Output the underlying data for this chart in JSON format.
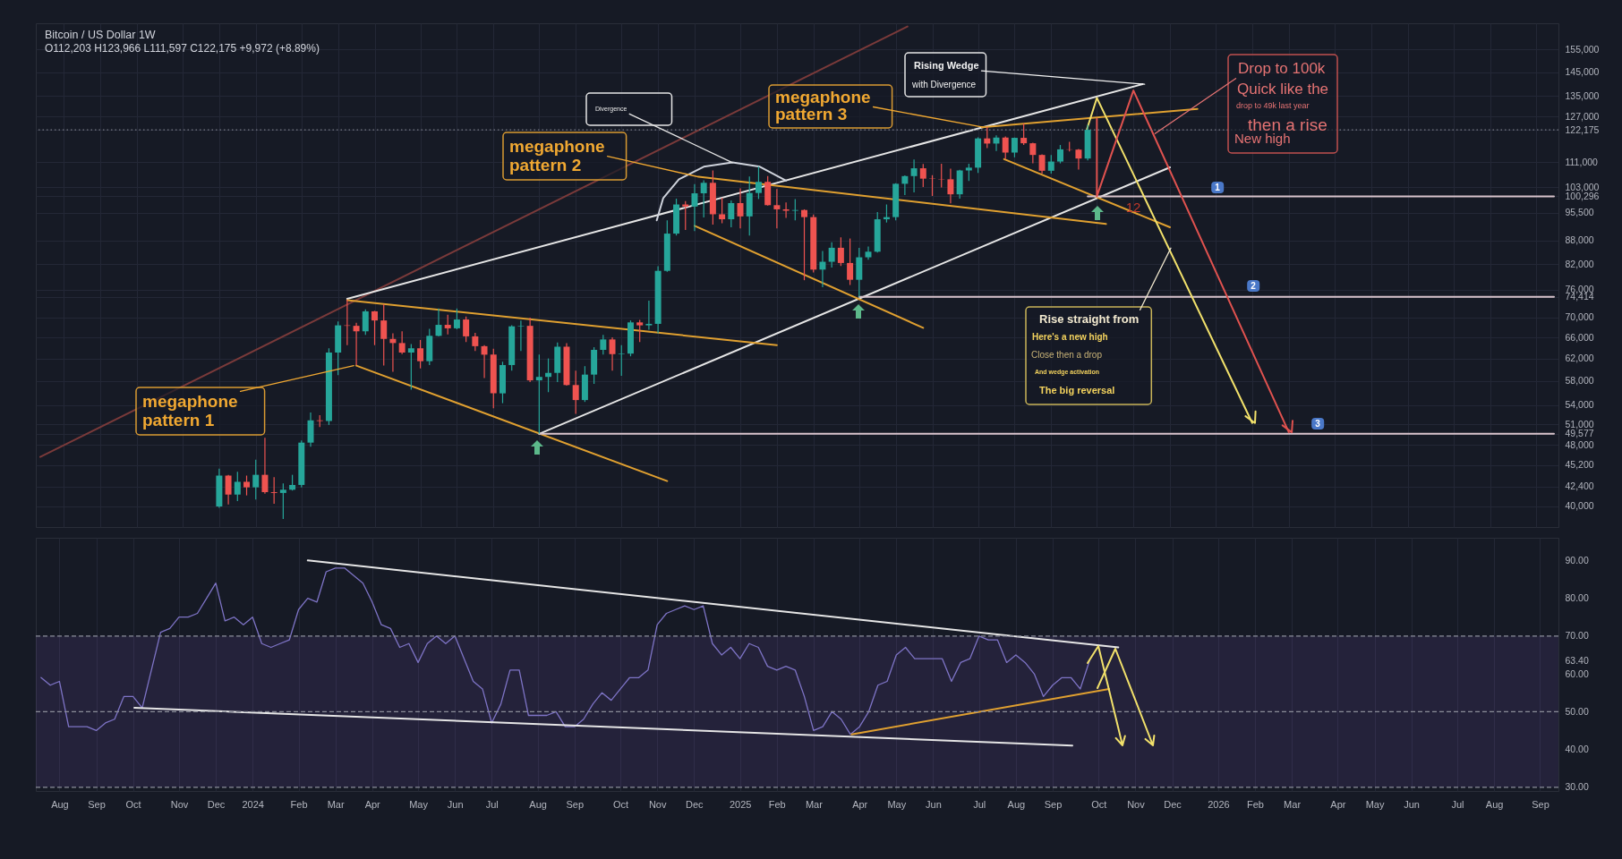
{
  "chart_data": [
    {
      "type": "candlestick",
      "title": "Bitcoin / US Dollar 1W",
      "subtitle": "O112,203 H123,966 L111,597 C122,175 +9,972 (+8.89%)",
      "x": [
        "2023-12-04",
        "2023-12-11",
        "2023-12-18",
        "2023-12-25",
        "2024-01-01",
        "2024-01-08",
        "2024-01-15",
        "2024-01-22",
        "2024-01-29",
        "2024-02-05",
        "2024-02-12",
        "2024-02-19",
        "2024-02-26",
        "2024-03-04",
        "2024-03-11",
        "2024-03-18",
        "2024-03-25",
        "2024-04-01",
        "2024-04-08",
        "2024-04-15",
        "2024-04-22",
        "2024-04-29",
        "2024-05-06",
        "2024-05-13",
        "2024-05-20",
        "2024-05-27",
        "2024-06-03",
        "2024-06-10",
        "2024-06-17",
        "2024-06-24",
        "2024-07-01",
        "2024-07-08",
        "2024-07-15",
        "2024-07-22",
        "2024-07-29",
        "2024-08-05",
        "2024-08-12",
        "2024-08-19",
        "2024-08-26",
        "2024-09-02",
        "2024-09-09",
        "2024-09-16",
        "2024-09-23",
        "2024-09-30",
        "2024-10-07",
        "2024-10-14",
        "2024-10-21",
        "2024-10-28",
        "2024-11-04",
        "2024-11-11",
        "2024-11-18",
        "2024-11-25",
        "2024-12-02",
        "2024-12-09",
        "2024-12-16",
        "2024-12-23",
        "2024-12-30",
        "2025-01-06",
        "2025-01-13",
        "2025-01-20",
        "2025-01-27",
        "2025-02-03",
        "2025-02-10",
        "2025-02-17",
        "2025-02-24",
        "2025-03-03",
        "2025-03-10",
        "2025-03-17",
        "2025-03-24",
        "2025-03-31",
        "2025-04-07",
        "2025-04-14",
        "2025-04-21",
        "2025-04-28",
        "2025-05-05",
        "2025-05-12",
        "2025-05-19",
        "2025-05-26",
        "2025-06-02",
        "2025-06-09",
        "2025-06-16",
        "2025-06-23",
        "2025-06-30",
        "2025-07-07",
        "2025-07-14",
        "2025-07-21",
        "2025-07-28",
        "2025-08-04",
        "2025-08-11",
        "2025-08-18",
        "2025-08-25",
        "2025-09-01",
        "2025-09-08",
        "2025-09-15",
        "2025-09-22",
        "2025-09-29"
      ],
      "ohlc": [
        [
          39970,
          44700,
          39800,
          43800
        ],
        [
          43800,
          43900,
          40200,
          41400
        ],
        [
          41400,
          44300,
          40600,
          43000
        ],
        [
          43000,
          43800,
          41300,
          42300
        ],
        [
          42300,
          45900,
          40800,
          43900
        ],
        [
          43900,
          49000,
          41500,
          41700
        ],
        [
          41700,
          43600,
          40300,
          41600
        ],
        [
          41600,
          42800,
          38500,
          42000
        ],
        [
          42000,
          43900,
          41900,
          42600
        ],
        [
          42600,
          48600,
          42300,
          48300
        ],
        [
          48300,
          52800,
          47700,
          51600
        ],
        [
          51600,
          52400,
          50600,
          51500
        ],
        [
          51500,
          63900,
          50900,
          63100
        ],
        [
          63100,
          69200,
          59000,
          68400
        ],
        [
          68400,
          73800,
          64500,
          68300
        ],
        [
          68300,
          68900,
          60800,
          67200
        ],
        [
          67200,
          71700,
          66500,
          71300
        ],
        [
          71300,
          71400,
          64500,
          69400
        ],
        [
          69400,
          72800,
          60700,
          65700
        ],
        [
          65700,
          66800,
          59600,
          64900
        ],
        [
          64900,
          67200,
          62800,
          63100
        ],
        [
          63100,
          64700,
          56500,
          63900
        ],
        [
          63900,
          65500,
          60200,
          61500
        ],
        [
          61500,
          67700,
          60800,
          66300
        ],
        [
          66300,
          71900,
          66200,
          68500
        ],
        [
          68500,
          70600,
          66600,
          67800
        ],
        [
          67800,
          71900,
          67600,
          69600
        ],
        [
          69600,
          70200,
          65100,
          66200
        ],
        [
          66200,
          66900,
          63400,
          64300
        ],
        [
          64300,
          64500,
          58500,
          62700
        ],
        [
          62700,
          63800,
          53500,
          55900
        ],
        [
          55900,
          61400,
          54300,
          60800
        ],
        [
          60800,
          68400,
          59800,
          68200
        ],
        [
          68200,
          69400,
          63400,
          68300
        ],
        [
          68300,
          70000,
          57800,
          58100
        ],
        [
          58100,
          62700,
          49577,
          58700
        ],
        [
          58700,
          62000,
          56100,
          59400
        ],
        [
          59400,
          65000,
          57800,
          64200
        ],
        [
          64200,
          64900,
          57200,
          57300
        ],
        [
          57300,
          59800,
          52600,
          54800
        ],
        [
          54800,
          60600,
          54500,
          59100
        ],
        [
          59100,
          64100,
          57500,
          63600
        ],
        [
          63600,
          66500,
          62700,
          65600
        ],
        [
          65600,
          66000,
          59800,
          62800
        ],
        [
          62800,
          64500,
          58900,
          62900
        ],
        [
          62900,
          69400,
          62400,
          69000
        ],
        [
          69000,
          69500,
          65100,
          68400
        ],
        [
          68400,
          73600,
          67500,
          68700
        ],
        [
          68700,
          81500,
          66800,
          80400
        ],
        [
          80400,
          93400,
          80200,
          89800
        ],
        [
          89800,
          99600,
          89300,
          97900
        ],
        [
          97900,
          98900,
          90800,
          97300
        ],
        [
          97300,
          104000,
          90500,
          101200
        ],
        [
          101200,
          105200,
          94200,
          104400
        ],
        [
          104400,
          108300,
          92200,
          95100
        ],
        [
          95100,
          99900,
          92600,
          93700
        ],
        [
          93700,
          99100,
          91500,
          98300
        ],
        [
          98300,
          102700,
          91200,
          94500
        ],
        [
          94500,
          106400,
          89300,
          101300
        ],
        [
          101300,
          109600,
          99500,
          104700
        ],
        [
          104700,
          106500,
          97600,
          97700
        ],
        [
          97700,
          102500,
          91200,
          96500
        ],
        [
          96500,
          98500,
          94100,
          96100
        ],
        [
          96100,
          99500,
          93400,
          96300
        ],
        [
          96300,
          96500,
          78200,
          94300
        ],
        [
          94300,
          95000,
          80000,
          80700
        ],
        [
          80700,
          85300,
          76600,
          82600
        ],
        [
          82600,
          87500,
          81200,
          86100
        ],
        [
          86100,
          88800,
          81600,
          82300
        ],
        [
          82300,
          88500,
          77100,
          78300
        ],
        [
          78300,
          86100,
          74414,
          83700
        ],
        [
          83700,
          86400,
          83100,
          85100
        ],
        [
          85100,
          95700,
          84900,
          93700
        ],
        [
          93700,
          97900,
          92800,
          94300
        ],
        [
          94300,
          104300,
          93400,
          104100
        ],
        [
          104100,
          106700,
          100700,
          106500
        ],
        [
          106500,
          111900,
          101500,
          109000
        ],
        [
          109000,
          110400,
          103100,
          105700
        ],
        [
          105700,
          106800,
          100400,
          105600
        ],
        [
          105600,
          110500,
          103000,
          105500
        ],
        [
          105500,
          108900,
          98200,
          100900
        ],
        [
          100900,
          108500,
          99600,
          108300
        ],
        [
          108300,
          110500,
          105000,
          109200
        ],
        [
          109200,
          119500,
          107500,
          119100
        ],
        [
          119100,
          123200,
          115700,
          117300
        ],
        [
          117300,
          120200,
          114700,
          119400
        ],
        [
          119400,
          119800,
          112000,
          114200
        ],
        [
          114200,
          119400,
          112600,
          119300
        ],
        [
          119300,
          124500,
          116800,
          117400
        ],
        [
          117400,
          117600,
          110600,
          113400
        ],
        [
          113400,
          113600,
          107300,
          108200
        ],
        [
          108200,
          113400,
          107300,
          111200
        ],
        [
          111200,
          116800,
          110600,
          115300
        ],
        [
          115300,
          117900,
          114600,
          115200
        ],
        [
          115200,
          115400,
          108600,
          112200
        ],
        [
          112203,
          123966,
          111597,
          122175
        ]
      ],
      "colors": [
        "#26a69a",
        "#ef5350",
        "#26a69a",
        "#ef5350",
        "#26a69a",
        "#ef5350",
        "#ef5350",
        "#26a69a",
        "#26a69a",
        "#26a69a",
        "#26a69a",
        "#ef5350",
        "#26a69a",
        "#26a69a",
        "#ef5350",
        "#ef5350",
        "#26a69a",
        "#ef5350",
        "#ef5350",
        "#ef5350",
        "#ef5350",
        "#26a69a",
        "#ef5350",
        "#26a69a",
        "#26a69a",
        "#ef5350",
        "#26a69a",
        "#ef5350",
        "#ef5350",
        "#ef5350",
        "#ef5350",
        "#26a69a",
        "#26a69a",
        "#26a69a",
        "#ef5350",
        "#26a69a",
        "#26a69a",
        "#26a69a",
        "#ef5350",
        "#ef5350",
        "#26a69a",
        "#26a69a",
        "#26a69a",
        "#ef5350",
        "#26a69a",
        "#26a69a",
        "#ef5350",
        "#26a69a",
        "#26a69a",
        "#26a69a",
        "#26a69a",
        "#ef5350",
        "#26a69a",
        "#26a69a",
        "#ef5350",
        "#ef5350",
        "#26a69a",
        "#ef5350",
        "#26a69a",
        "#26a69a",
        "#ef5350",
        "#ef5350",
        "#ef5350",
        "#26a69a",
        "#ef5350",
        "#ef5350",
        "#26a69a",
        "#26a69a",
        "#ef5350",
        "#ef5350",
        "#26a69a",
        "#26a69a",
        "#26a69a",
        "#26a69a",
        "#26a69a",
        "#26a69a",
        "#26a69a",
        "#ef5350",
        "#ef5350",
        "#ef5350",
        "#ef5350",
        "#26a69a",
        "#26a69a",
        "#26a69a",
        "#ef5350",
        "#26a69a",
        "#ef5350",
        "#26a69a",
        "#ef5350",
        "#ef5350",
        "#ef5350",
        "#26a69a",
        "#26a69a",
        "#ef5350",
        "#ef5350",
        "#26a69a"
      ],
      "series": [
        {
          "type": "line",
          "color": "#7a3a3a",
          "x": [
            "2023-07-20",
            "2025-05-14"
          ],
          "values": [
            46300,
            166000
          ]
        },
        {
          "type": "line",
          "color": "#e6e6e6",
          "x": [
            "2024-03-11",
            "2025-11-10"
          ],
          "values": [
            74000,
            139900
          ]
        },
        {
          "type": "line",
          "color": "#e6e6e6",
          "x": [
            "2024-08-05",
            "2025-12-01"
          ],
          "values": [
            49577,
            109300
          ]
        },
        {
          "type": "line",
          "color": "#e0a030",
          "x": [
            "2024-03-11",
            "2025-02-03"
          ],
          "values": [
            73700,
            64500
          ]
        },
        {
          "type": "line",
          "color": "#e0a030",
          "x": [
            "2024-03-18",
            "2024-11-11"
          ],
          "values": [
            60700,
            43100
          ]
        },
        {
          "type": "line",
          "color": "#e0a030",
          "x": [
            "2024-12-05",
            "2025-10-13"
          ],
          "values": [
            106300,
            92400
          ]
        },
        {
          "type": "line",
          "color": "#e0a030",
          "x": [
            "2024-12-02",
            "2025-05-26"
          ],
          "values": [
            91900,
            67900
          ]
        },
        {
          "type": "line",
          "color": "#e0a030",
          "x": [
            "2025-07-10",
            "2025-12-22"
          ],
          "values": [
            123100,
            130000
          ]
        },
        {
          "type": "line",
          "color": "#e0a030",
          "x": [
            "2025-07-27",
            "2025-12-01"
          ],
          "values": [
            112000,
            91500
          ]
        },
        {
          "type": "line",
          "color": "#cfd3dc",
          "x": [
            "2024-11-03",
            "2024-11-08",
            "2024-11-20",
            "2024-12-09",
            "2024-12-31",
            "2025-01-21",
            "2025-02-10"
          ],
          "values": [
            93400,
            99800,
            105500,
            109500,
            110900,
            109500,
            105100
          ]
        },
        {
          "type": "line",
          "color": "#d8c3cc",
          "x": [
            "2025-09-29",
            "2026-09-21"
          ],
          "values": [
            100296,
            100296
          ]
        },
        {
          "type": "line",
          "color": "#d8c3cc",
          "x": [
            "2025-04-07",
            "2026-09-21"
          ],
          "values": [
            74414,
            74414
          ]
        },
        {
          "type": "line",
          "color": "#d8c3cc",
          "x": [
            "2024-08-05",
            "2026-09-21"
          ],
          "values": [
            49577,
            49577
          ]
        },
        {
          "type": "line",
          "color": "#f2e16b",
          "x": [
            "2025-09-28",
            "2025-10-06",
            "2026-02-02"
          ],
          "values": [
            121800,
            134300,
            51200
          ]
        },
        {
          "type": "line",
          "color": "#e0524f",
          "x": [
            "2025-10-06",
            "2025-10-06",
            "2025-11-03",
            "2026-03-02"
          ],
          "values": [
            126200,
            100300,
            137300,
            49800
          ]
        }
      ],
      "xlim": [
        "2023-07-20",
        "2026-09-21"
      ],
      "xticks": [
        "2023-08-07",
        "2023-09-04",
        "2023-10-02",
        "2023-11-06",
        "2023-12-04",
        "2024-01-01",
        "2024-02-05",
        "2024-03-04",
        "2024-04-01",
        "2024-05-06",
        "2024-06-03",
        "2024-07-01",
        "2024-08-05",
        "2024-09-02",
        "2024-10-07",
        "2024-11-04",
        "2024-12-02",
        "2025-01-06",
        "2025-02-03",
        "2025-03-03",
        "2025-04-07",
        "2025-05-05",
        "2025-06-02",
        "2025-07-07",
        "2025-08-04",
        "2025-09-01",
        "2025-10-06",
        "2025-11-03",
        "2025-12-01",
        "2026-01-05",
        "2026-02-02",
        "2026-03-02",
        "2026-04-06",
        "2026-05-04",
        "2026-06-01",
        "2026-07-06",
        "2026-08-03",
        "2026-09-07"
      ],
      "ylim": [
        37600,
        167600
      ],
      "yticks": [
        {
          "value": 40000,
          "label": "40,000"
        },
        {
          "value": 42400,
          "label": "42,400"
        },
        {
          "value": 45200,
          "label": "45,200"
        },
        {
          "value": 48000,
          "label": "48,000"
        },
        {
          "value": 49577,
          "label": "49,577"
        },
        {
          "value": 51000,
          "label": "51,000"
        },
        {
          "value": 54000,
          "label": "54,000"
        },
        {
          "value": 58000,
          "label": "58,000"
        },
        {
          "value": 62000,
          "label": "62,000"
        },
        {
          "value": 66000,
          "label": "66,000"
        },
        {
          "value": 70000,
          "label": "70,000"
        },
        {
          "value": 74414,
          "label": "74,414"
        },
        {
          "value": 76000,
          "label": "76,000"
        },
        {
          "value": 82000,
          "label": "82,000"
        },
        {
          "value": 88000,
          "label": "88,000"
        },
        {
          "value": 95500,
          "label": "95,500"
        },
        {
          "value": 100296,
          "label": "100,296"
        },
        {
          "value": 103000,
          "label": "103,000"
        },
        {
          "value": 111000,
          "label": "111,000"
        },
        {
          "value": 122175,
          "label": "122,175"
        },
        {
          "value": 127000,
          "label": "127,000"
        },
        {
          "value": 135000,
          "label": "135,000"
        },
        {
          "value": 145000,
          "label": "145,000"
        },
        {
          "value": 155000,
          "label": "155,000"
        }
      ],
      "log": "y",
      "grid": true,
      "tick_labels": "y",
      "ref_lines": [
        {
          "axis": "y",
          "value": 122175,
          "color": "#787b86",
          "line_style": "dotted"
        }
      ],
      "annotations": [
        {
          "text": "megaphone",
          "x": "2024-03-18",
          "y": 60700
        },
        "pattern 1",
        {
          "text": "megaphone",
          "x": "2024-12-05",
          "y": 106300
        },
        "pattern 2",
        {
          "text": "megaphone",
          "x": "2025-07-10",
          "y": 123100
        },
        "pattern 3",
        {
          "text": "Divergence",
          "x": "2024-12-31",
          "y": 110900
        },
        {
          "text": "Rising Wedge",
          "x": "2025-11-10",
          "y": 139900
        },
        "with Divergence",
        {
          "text": "Drop to 100k",
          "x": "2025-11-18",
          "y": 120800
        },
        "Quick like the",
        "drop to 49k last year",
        "then a rise",
        "New high",
        {
          "text": "Rise straight from",
          "x": "2025-11-30",
          "y": 86000
        },
        "Here's a new high",
        "Close then a drop",
        "And wedge activation",
        "The big reversal",
        "1",
        "2",
        "3",
        "12"
      ]
    },
    {
      "type": "line",
      "x": [
        "2023-07-24",
        "2023-07-31",
        "2023-08-07",
        "2023-08-14",
        "2023-08-21",
        "2023-08-28",
        "2023-09-04",
        "2023-09-11",
        "2023-09-18",
        "2023-09-25",
        "2023-10-02",
        "2023-10-09",
        "2023-10-16",
        "2023-10-23",
        "2023-10-30",
        "2023-11-06",
        "2023-11-13",
        "2023-11-20",
        "2023-11-27",
        "2023-12-04",
        "2023-12-11",
        "2023-12-18",
        "2023-12-25",
        "2024-01-01",
        "2024-01-08",
        "2024-01-15",
        "2024-01-22",
        "2024-01-29",
        "2024-02-05",
        "2024-02-12",
        "2024-02-19",
        "2024-02-26",
        "2024-03-04",
        "2024-03-11",
        "2024-03-18",
        "2024-03-25",
        "2024-04-01",
        "2024-04-08",
        "2024-04-15",
        "2024-04-22",
        "2024-04-29",
        "2024-05-06",
        "2024-05-13",
        "2024-05-20",
        "2024-05-27",
        "2024-06-03",
        "2024-06-10",
        "2024-06-17",
        "2024-06-24",
        "2024-07-01",
        "2024-07-08",
        "2024-07-15",
        "2024-07-22",
        "2024-07-29",
        "2024-08-05",
        "2024-08-12",
        "2024-08-19",
        "2024-08-26",
        "2024-09-02",
        "2024-09-09",
        "2024-09-16",
        "2024-09-23",
        "2024-09-30",
        "2024-10-07",
        "2024-10-14",
        "2024-10-21",
        "2024-10-28",
        "2024-11-04",
        "2024-11-11",
        "2024-11-18",
        "2024-11-25",
        "2024-12-02",
        "2024-12-09",
        "2024-12-16",
        "2024-12-23",
        "2024-12-30",
        "2025-01-06",
        "2025-01-13",
        "2025-01-20",
        "2025-01-27",
        "2025-02-03",
        "2025-02-10",
        "2025-02-17",
        "2025-02-24",
        "2025-03-03",
        "2025-03-10",
        "2025-03-17",
        "2025-03-24",
        "2025-03-31",
        "2025-04-07",
        "2025-04-14",
        "2025-04-21",
        "2025-04-28",
        "2025-05-05",
        "2025-05-12",
        "2025-05-19",
        "2025-05-26",
        "2025-06-02",
        "2025-06-09",
        "2025-06-16",
        "2025-06-23",
        "2025-06-30",
        "2025-07-07",
        "2025-07-14",
        "2025-07-21",
        "2025-07-28",
        "2025-08-04",
        "2025-08-11",
        "2025-08-18",
        "2025-08-25",
        "2025-09-01",
        "2025-09-08",
        "2025-09-15",
        "2025-09-22",
        "2025-09-29"
      ],
      "series": [
        {
          "color": "#7e74c6",
          "values": [
            59,
            57,
            58,
            46,
            46,
            46,
            45,
            47,
            48,
            54,
            54,
            51,
            61,
            71,
            72,
            75,
            75,
            76,
            80,
            84,
            74,
            75,
            73,
            75,
            68,
            67,
            68,
            69,
            77,
            80,
            79,
            87,
            88,
            88,
            86,
            84,
            79,
            73,
            72,
            67,
            68,
            63,
            68,
            70,
            68,
            70,
            64,
            58,
            56,
            47,
            52,
            61,
            61,
            49,
            49,
            49,
            50,
            46,
            46,
            48,
            52,
            55,
            53,
            56,
            59,
            59,
            61,
            73,
            76,
            77,
            78,
            77,
            78,
            68,
            65,
            67,
            64,
            68,
            67,
            62,
            61,
            62,
            61,
            54,
            45,
            46,
            50,
            48,
            44,
            46,
            50,
            57,
            58,
            65,
            67,
            64,
            64,
            64,
            64,
            58,
            63,
            64,
            70,
            69,
            69,
            63,
            65,
            63,
            60,
            54,
            57,
            59,
            59,
            56,
            63.4
          ]
        },
        {
          "color": "#e6e6e6",
          "x": [
            "2024-02-12",
            "2025-10-21"
          ],
          "values": [
            90,
            67
          ]
        },
        {
          "color": "#e6e6e6",
          "x": [
            "2023-10-03",
            "2025-09-16"
          ],
          "values": [
            51,
            41
          ]
        },
        {
          "color": "#e0a030",
          "x": [
            "2025-04-01",
            "2025-10-14"
          ],
          "values": [
            44,
            56
          ]
        }
      ],
      "xlim": [
        "2023-07-20",
        "2026-09-21"
      ],
      "xticks": [
        {
          "value": "2023-08-07",
          "label": "Aug"
        },
        {
          "value": "2023-09-04",
          "label": "Sep"
        },
        {
          "value": "2023-10-02",
          "label": "Oct"
        },
        {
          "value": "2023-11-06",
          "label": "Nov"
        },
        {
          "value": "2023-12-04",
          "label": "Dec"
        },
        {
          "value": "2024-01-01",
          "label": "2024"
        },
        {
          "value": "2024-02-05",
          "label": "Feb"
        },
        {
          "value": "2024-03-04",
          "label": "Mar"
        },
        {
          "value": "2024-04-01",
          "label": "Apr"
        },
        {
          "value": "2024-05-06",
          "label": "May"
        },
        {
          "value": "2024-06-03",
          "label": "Jun"
        },
        {
          "value": "2024-07-01",
          "label": "Jul"
        },
        {
          "value": "2024-08-05",
          "label": "Aug"
        },
        {
          "value": "2024-09-02",
          "label": "Sep"
        },
        {
          "value": "2024-10-07",
          "label": "Oct"
        },
        {
          "value": "2024-11-04",
          "label": "Nov"
        },
        {
          "value": "2024-12-02",
          "label": "Dec"
        },
        {
          "value": "2025-01-06",
          "label": "2025"
        },
        {
          "value": "2025-02-03",
          "label": "Feb"
        },
        {
          "value": "2025-03-03",
          "label": "Mar"
        },
        {
          "value": "2025-04-07",
          "label": "Apr"
        },
        {
          "value": "2025-05-05",
          "label": "May"
        },
        {
          "value": "2025-06-02",
          "label": "Jun"
        },
        {
          "value": "2025-07-07",
          "label": "Jul"
        },
        {
          "value": "2025-08-04",
          "label": "Aug"
        },
        {
          "value": "2025-09-01",
          "label": "Sep"
        },
        {
          "value": "2025-10-06",
          "label": "Oct"
        },
        {
          "value": "2025-11-03",
          "label": "Nov"
        },
        {
          "value": "2025-12-01",
          "label": "Dec"
        },
        {
          "value": "2026-01-05",
          "label": "2026"
        },
        {
          "value": "2026-02-02",
          "label": "Feb"
        },
        {
          "value": "2026-03-02",
          "label": "Mar"
        },
        {
          "value": "2026-04-06",
          "label": "Apr"
        },
        {
          "value": "2026-05-04",
          "label": "May"
        },
        {
          "value": "2026-06-01",
          "label": "Jun"
        },
        {
          "value": "2026-07-06",
          "label": "Jul"
        },
        {
          "value": "2026-08-03",
          "label": "Aug"
        },
        {
          "value": "2026-09-07",
          "label": "Sep"
        }
      ],
      "ylim": [
        29,
        96
      ],
      "yticks": [
        {
          "value": 30,
          "label": "30.00"
        },
        {
          "value": 40,
          "label": "40.00"
        },
        {
          "value": 50,
          "label": "50.00"
        },
        {
          "value": 60,
          "label": "60.00"
        },
        {
          "value": 63.4,
          "label": "63.40"
        },
        {
          "value": 70,
          "label": "70.00"
        },
        {
          "value": 80,
          "label": "80.00"
        },
        {
          "value": 90,
          "label": "90.00"
        }
      ],
      "grid": "x",
      "ref_lines": [
        {
          "axis": "y",
          "value": 70,
          "color": "#8a8d99",
          "line_style": "dashed"
        },
        {
          "axis": "y",
          "value": 50,
          "color": "#8a8d99",
          "line_style": "dashed"
        },
        {
          "axis": "y",
          "value": 30,
          "color": "#8a8d99",
          "line_style": "dashed"
        }
      ],
      "bands": [
        {
          "axis": "y",
          "from": 30,
          "to": 70,
          "color": "#7e57c2"
        }
      ]
    }
  ]
}
